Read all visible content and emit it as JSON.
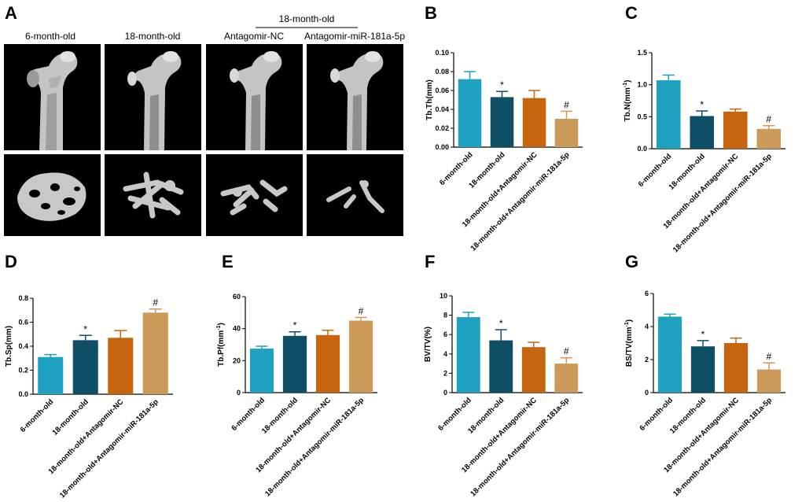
{
  "figure": {
    "panel_a": {
      "letter": "A",
      "group_label": "18-month-old",
      "columns": [
        "6-month-old",
        "18-month-old",
        "Antagomir-NC",
        "Antagomir-miR-181a-5p"
      ]
    }
  },
  "colors": [
    "#1fa2c1",
    "#0e4f66",
    "#c7640f",
    "#cc9a58"
  ],
  "chart_data": [
    {
      "panel": "B",
      "type": "bar",
      "ylabel": "Tb.Th(mm)",
      "categories": [
        "6-month-old",
        "18-month-old",
        "18-month-old+Antagomir-NC",
        "18-month-old+Antagomir-miR-181a-5p"
      ],
      "values": [
        0.072,
        0.053,
        0.052,
        0.03
      ],
      "errors": [
        0.008,
        0.006,
        0.008,
        0.008
      ],
      "significance": [
        "",
        "*",
        "",
        "#"
      ],
      "ylim": [
        0,
        0.1
      ],
      "yticks": [
        "0.00",
        "0.02",
        "0.04",
        "0.06",
        "0.08",
        "0.10"
      ],
      "ytick_values": [
        0,
        0.02,
        0.04,
        0.06,
        0.08,
        0.1
      ]
    },
    {
      "panel": "C",
      "type": "bar",
      "ylabel": "Tb.N(mm-1)",
      "categories": [
        "6-month-old",
        "18-month-old",
        "18-month-old+Antagomir-NC",
        "18-month-old+Antagomir-miR-181a-5p"
      ],
      "values": [
        1.07,
        0.51,
        0.58,
        0.31
      ],
      "errors": [
        0.08,
        0.08,
        0.04,
        0.05
      ],
      "significance": [
        "",
        "*",
        "",
        "#"
      ],
      "ylim": [
        0,
        1.5
      ],
      "yticks": [
        "0.0",
        "0.5",
        "1.0",
        "1.5"
      ],
      "ytick_values": [
        0,
        0.5,
        1.0,
        1.5
      ]
    },
    {
      "panel": "D",
      "type": "bar",
      "ylabel": "Tb.Sp(mm)",
      "categories": [
        "6-month-old",
        "18-month-old",
        "18-month-old+Antagomir-NC",
        "18-month-old+Antagomir-miR-181a-5p"
      ],
      "values": [
        0.31,
        0.45,
        0.47,
        0.68
      ],
      "errors": [
        0.02,
        0.04,
        0.06,
        0.03
      ],
      "significance": [
        "",
        "*",
        "",
        "#"
      ],
      "ylim": [
        0,
        0.8
      ],
      "yticks": [
        "0.0",
        "0.2",
        "0.4",
        "0.6",
        "0.8"
      ],
      "ytick_values": [
        0,
        0.2,
        0.4,
        0.6,
        0.8
      ]
    },
    {
      "panel": "E",
      "type": "bar",
      "ylabel": "Tb.Pf(mm-1)",
      "categories": [
        "6-month-old",
        "18-month-old",
        "18-month-old+Antagomir-NC",
        "18-month-old+Antagomir-miR-181a-5p"
      ],
      "values": [
        27.5,
        35.5,
        36.0,
        45.0
      ],
      "errors": [
        1.5,
        2.5,
        3.0,
        2.0
      ],
      "significance": [
        "",
        "*",
        "",
        "#"
      ],
      "ylim": [
        0,
        60
      ],
      "yticks": [
        "0",
        "20",
        "40",
        "60"
      ],
      "ytick_values": [
        0,
        20,
        40,
        60
      ]
    },
    {
      "panel": "F",
      "type": "bar",
      "ylabel": "BV/TV(%)",
      "categories": [
        "6-month-old",
        "18-month-old",
        "18-month-old+Antagomir-NC",
        "18-month-old+Antagomir-miR-181a-5p"
      ],
      "values": [
        7.8,
        5.4,
        4.7,
        3.0
      ],
      "errors": [
        0.5,
        1.1,
        0.5,
        0.6
      ],
      "significance": [
        "",
        "*",
        "",
        "#"
      ],
      "ylim": [
        0,
        10
      ],
      "yticks": [
        "0",
        "2",
        "4",
        "6",
        "8",
        "10"
      ],
      "ytick_values": [
        0,
        2,
        4,
        6,
        8,
        10
      ]
    },
    {
      "panel": "G",
      "type": "bar",
      "ylabel": "BS/TV(mm-1)",
      "categories": [
        "6-month-old",
        "18-month-old",
        "18-month-old+Antagomir-NC",
        "18-month-old+Antagomir-miR-181a-5p"
      ],
      "values": [
        4.6,
        2.8,
        3.0,
        1.4
      ],
      "errors": [
        0.15,
        0.35,
        0.3,
        0.4
      ],
      "significance": [
        "",
        "*",
        "",
        "#"
      ],
      "ylim": [
        0,
        6
      ],
      "yticks": [
        "0",
        "2",
        "4",
        "6"
      ],
      "ytick_values": [
        0,
        2,
        4,
        6
      ]
    }
  ]
}
